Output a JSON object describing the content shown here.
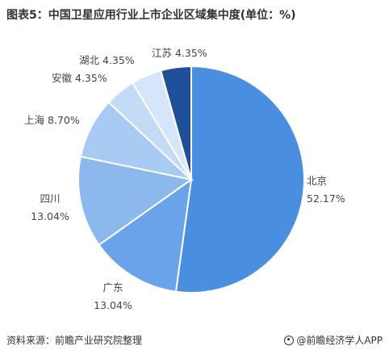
{
  "title": "图表5：中国卫星应用行业上市企业区域集中度(单位：%)",
  "source": "资料来源：前瞻产业研究院整理",
  "brand": "@前瞻经济学人APP",
  "chart_data": {
    "type": "pie",
    "title": "图表5：中国卫星应用行业上市企业区域集中度(单位：%)",
    "unit": "%",
    "slices": [
      {
        "name": "北京",
        "value": 52.17,
        "value_label": "52.17%",
        "color": "#4a8ee0"
      },
      {
        "name": "广东",
        "value": 13.04,
        "value_label": "13.04%",
        "color": "#6aa3ea"
      },
      {
        "name": "四川",
        "value": 13.04,
        "value_label": "13.04%",
        "color": "#8cb8ee"
      },
      {
        "name": "上海",
        "value": 8.7,
        "value_label": "8.70%",
        "color": "#a9cbf3"
      },
      {
        "name": "安徽",
        "value": 4.35,
        "value_label": "4.35%",
        "color": "#c3dbf7"
      },
      {
        "name": "湖北",
        "value": 4.35,
        "value_label": "4.35%",
        "color": "#d6e6fa"
      },
      {
        "name": "江苏",
        "value": 4.35,
        "value_label": "4.35%",
        "color": "#1f4f98"
      }
    ]
  }
}
